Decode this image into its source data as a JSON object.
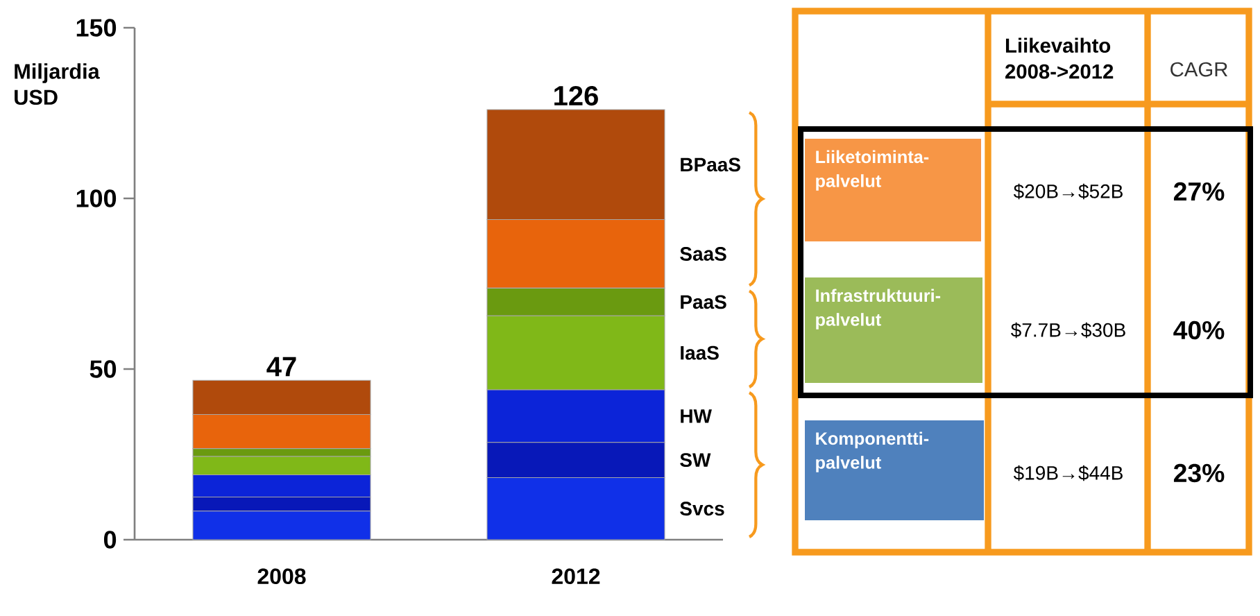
{
  "chart_data": [
    {
      "type": "bar",
      "stacked": true,
      "categories": [
        "2008",
        "2012"
      ],
      "ylabel": "Miljardia USD",
      "ylim": [
        0,
        150
      ],
      "yticks": [
        0,
        50,
        100,
        150
      ],
      "totals": [
        "47",
        "126"
      ],
      "series": [
        {
          "name": "Svcs",
          "color": "#1030e8",
          "values": [
            8.4,
            18.2
          ]
        },
        {
          "name": "SW",
          "color": "#0818b8",
          "values": [
            4.1,
            10.3
          ]
        },
        {
          "name": "HW",
          "color": "#0c24d8",
          "values": [
            6.5,
            15.4
          ]
        },
        {
          "name": "IaaS",
          "color": "#80b818",
          "values": [
            5.4,
            21.7
          ]
        },
        {
          "name": "PaaS",
          "color": "#6a9a10",
          "values": [
            2.3,
            8.1
          ]
        },
        {
          "name": "SaaS",
          "color": "#e8640c",
          "values": [
            10,
            20.1
          ]
        },
        {
          "name": "BPaaS",
          "color": "#b04a0c",
          "values": [
            10,
            32.2
          ]
        }
      ]
    },
    {
      "type": "other",
      "annotations": [
        "Liikevaihto 2008->2012",
        "CAGR",
        "Liiketoiminta-palvelut",
        "$20B→$52B",
        "27%",
        "Infrastruktuuri-palvelut",
        "$7.7B→$30B",
        "40%",
        "Komponentti-palvelut",
        "$19B→$44B",
        "23%"
      ]
    }
  ]
}
